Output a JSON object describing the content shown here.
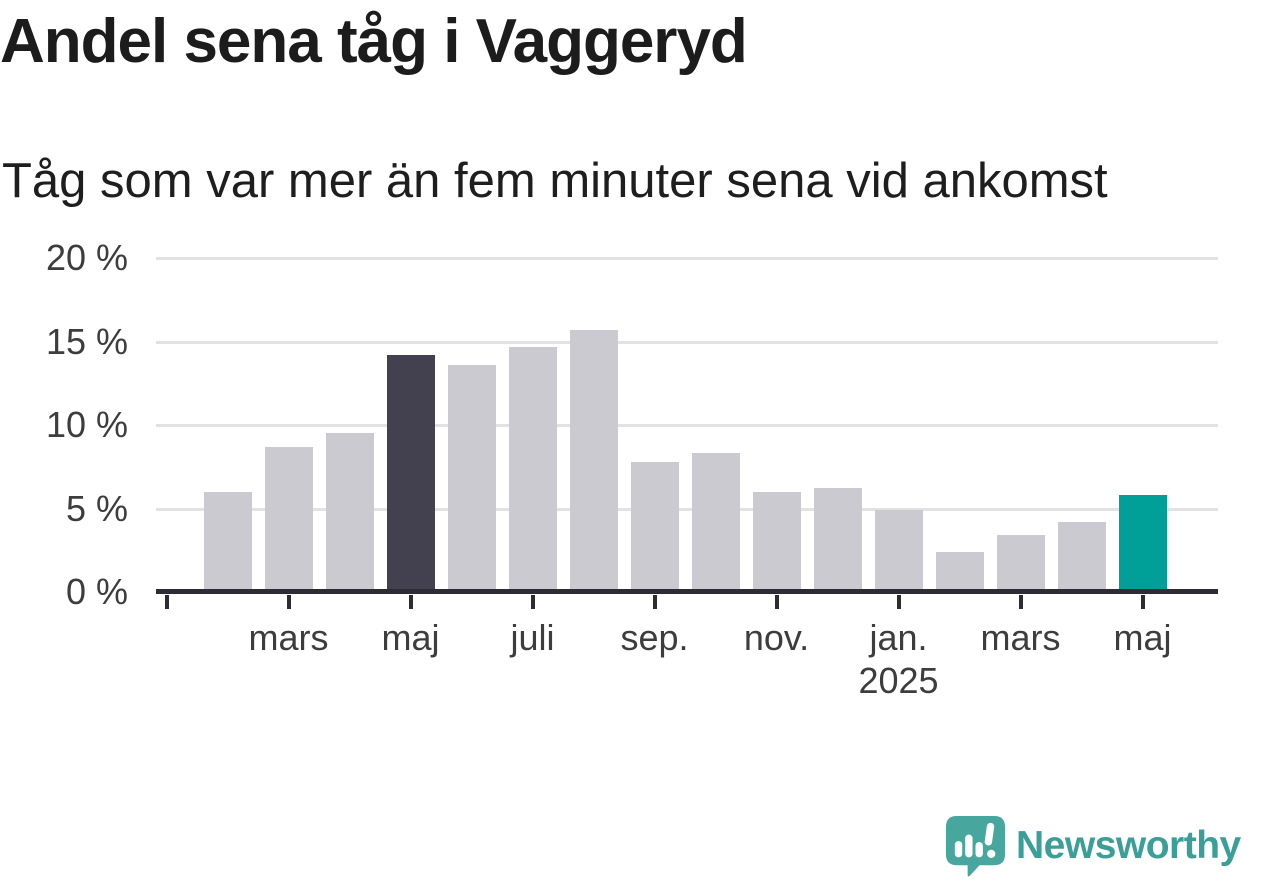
{
  "header": {
    "title": "Andel sena tåg i Vaggeryd",
    "subtitle": "Tåg som var mer än fem minuter sena vid ankomst"
  },
  "chart_data": {
    "type": "bar",
    "title": "Andel sena tåg i Vaggeryd",
    "subtitle": "Tåg som var mer än fem minuter sena vid ankomst",
    "unit": "%",
    "categories": [
      "feb. 2024",
      "mars 2024",
      "april 2024",
      "maj 2024",
      "juni 2024",
      "juli 2024",
      "aug. 2024",
      "sep. 2024",
      "okt. 2024",
      "nov. 2024",
      "dec. 2024",
      "jan. 2025",
      "feb. 2025",
      "mars 2025",
      "april 2025",
      "maj 2025"
    ],
    "values": [
      6.0,
      8.7,
      9.5,
      14.2,
      13.6,
      14.7,
      15.7,
      7.8,
      8.3,
      6.0,
      6.2,
      4.9,
      2.4,
      3.4,
      4.2,
      5.8
    ],
    "highlight_dark_index": 3,
    "highlight_accent_index": 15,
    "ylim": [
      0,
      20
    ],
    "grid": "horizontal",
    "legend": "none",
    "colors": {
      "bar_default": "#cbcad1",
      "bar_dark": "#434150",
      "bar_accent": "#00a099",
      "gridline": "#e2e2e2",
      "axis": "#2d2b33",
      "label": "#3d3d3d"
    },
    "y_ticks": [
      {
        "value": 20,
        "label": "20 %"
      },
      {
        "value": 15,
        "label": "15 %"
      },
      {
        "value": 10,
        "label": "10 %"
      },
      {
        "value": 5,
        "label": "5 %"
      },
      {
        "value": 0,
        "label": "0 %"
      }
    ],
    "x_ticks": [
      {
        "bar_index": -1,
        "label": "",
        "sublabel": ""
      },
      {
        "bar_index": 1,
        "label": "mars",
        "sublabel": ""
      },
      {
        "bar_index": 3,
        "label": "maj",
        "sublabel": ""
      },
      {
        "bar_index": 5,
        "label": "juli",
        "sublabel": ""
      },
      {
        "bar_index": 7,
        "label": "sep.",
        "sublabel": ""
      },
      {
        "bar_index": 9,
        "label": "nov.",
        "sublabel": ""
      },
      {
        "bar_index": 11,
        "label": "jan.",
        "sublabel": "2025"
      },
      {
        "bar_index": 13,
        "label": "mars",
        "sublabel": ""
      },
      {
        "bar_index": 15,
        "label": "maj",
        "sublabel": ""
      }
    ]
  },
  "footer": {
    "brand_name": "Newsworthy",
    "brand_color": "#3a9f98",
    "logo_mark_color": "#47a69d",
    "logo_icon": "bar-chart-exclamation-speech-bubble"
  }
}
